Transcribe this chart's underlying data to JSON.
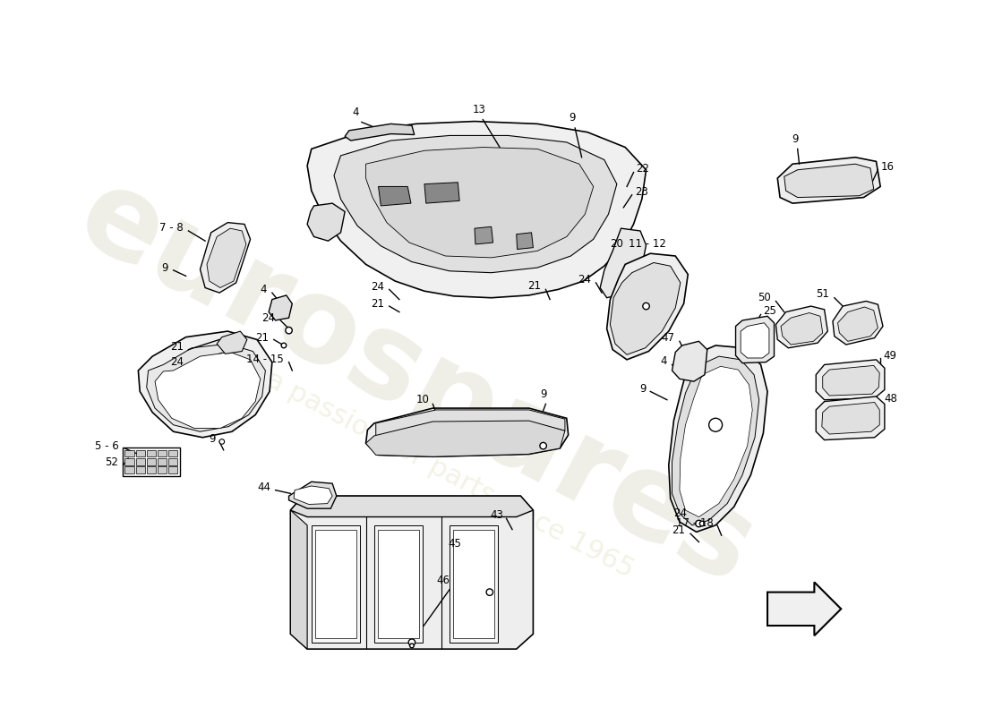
{
  "bg": "#ffffff",
  "lc": "#000000",
  "wm1": "eurospares",
  "wm2": "a passion for parts since 1965",
  "ann_fontsize": 8.5,
  "label_fontsize": 8.5
}
